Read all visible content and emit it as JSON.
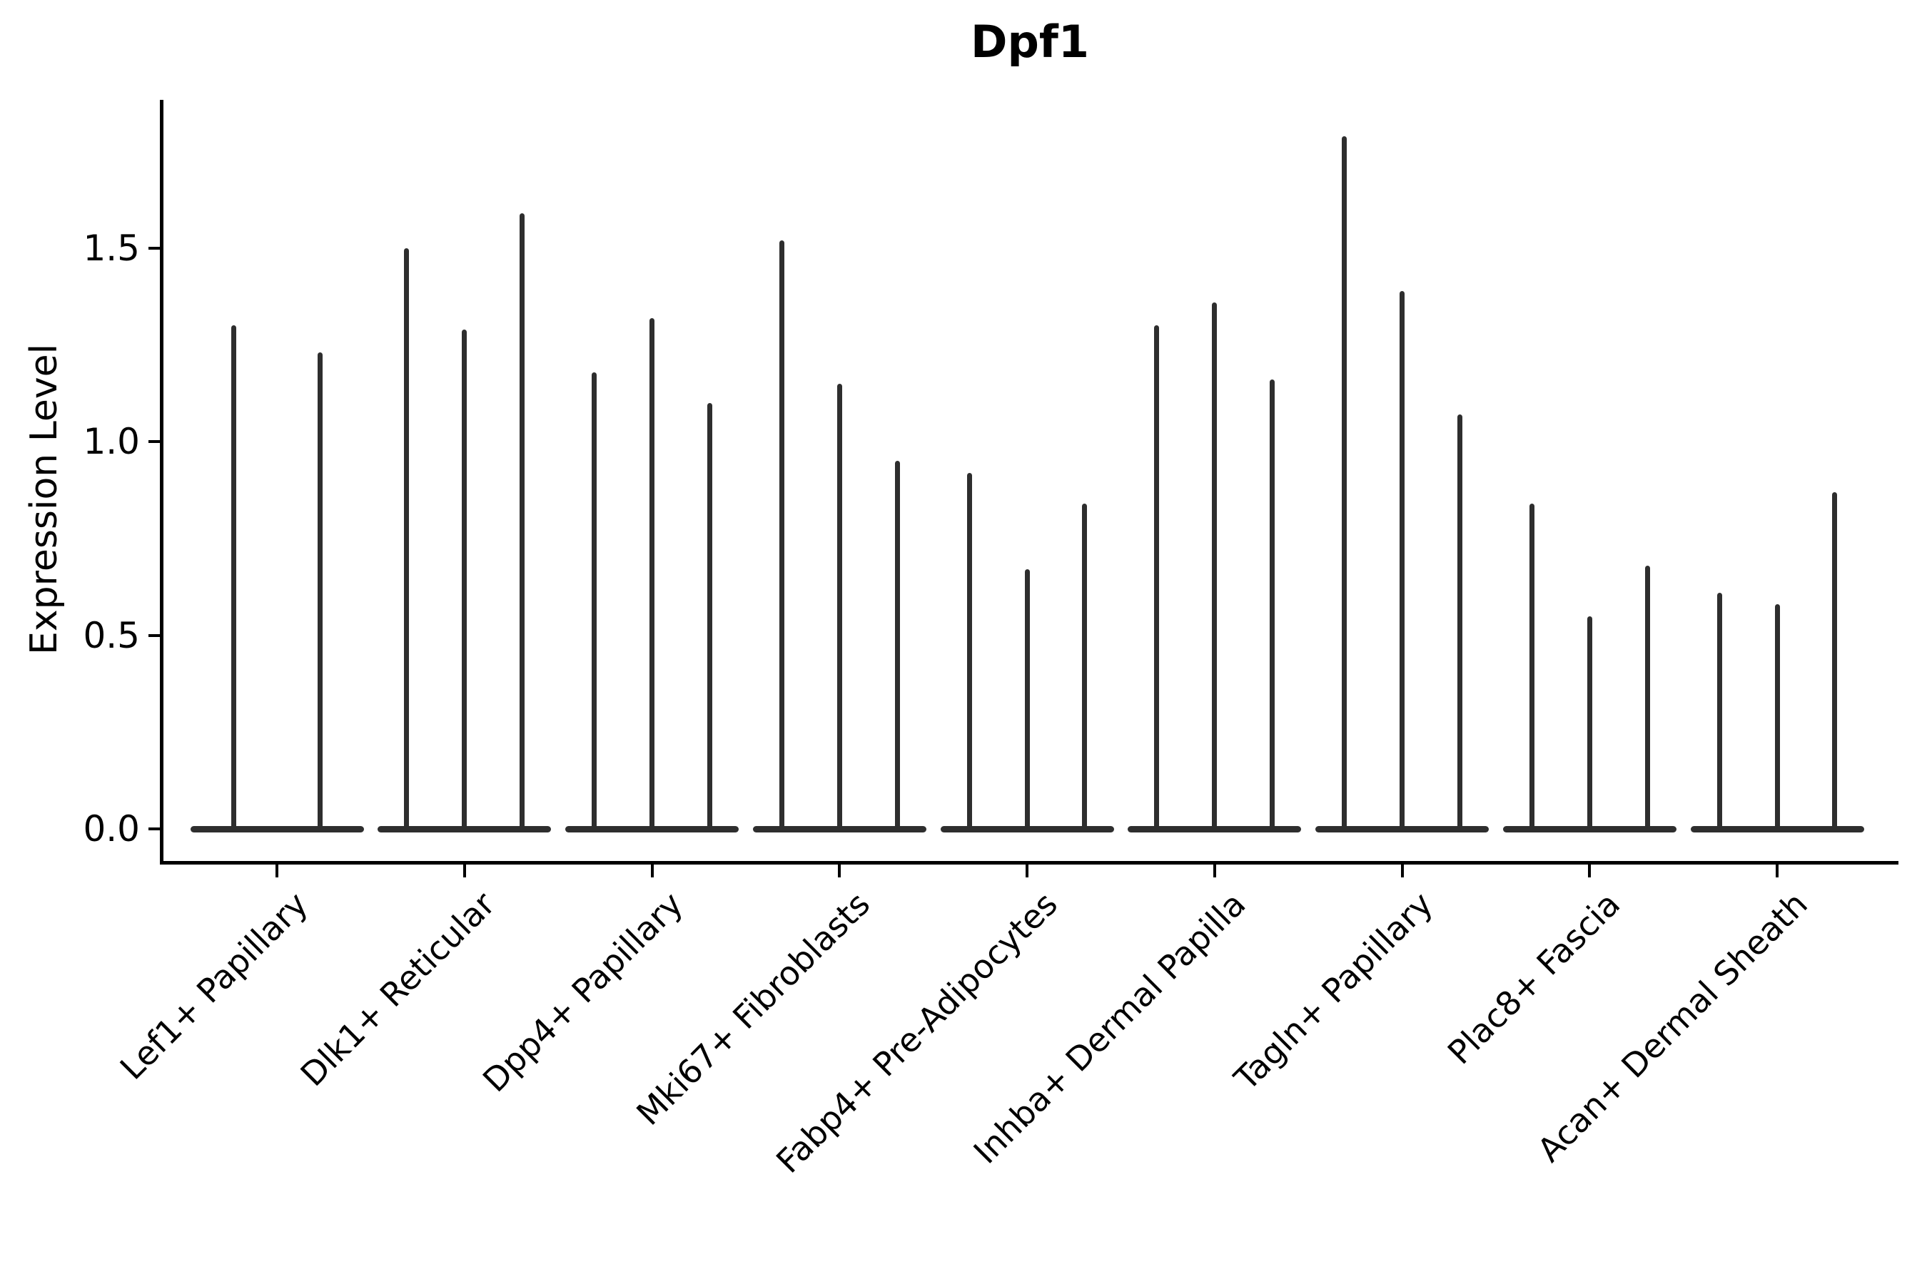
{
  "figure": {
    "title": "Dpf1"
  },
  "axes": {
    "ylabel": "Expression Level",
    "ytick_labels": [
      "0.0",
      "0.5",
      "1.0",
      "1.5"
    ]
  },
  "colors": {
    "ink": "#000000",
    "violin": "#2e2e2e",
    "background": "#ffffff"
  },
  "chart_data": {
    "type": "violin",
    "title": "Dpf1",
    "xlabel": "",
    "ylabel": "Expression Level",
    "ylim": [
      -0.09,
      1.89
    ],
    "yticks": [
      0.0,
      0.5,
      1.0,
      1.5
    ],
    "grid": false,
    "legend": false,
    "x_tick_rotation_deg": 45,
    "note": "Each category shows narrow violins: bulk of cells at expression 0 (flat base) with a thin spike up to the maximum expression value.",
    "categories": [
      "Lef1+ Papillary",
      "Dlk1+ Reticular",
      "Dpp4+ Papillary",
      "Mki67+ Fibroblasts",
      "Fabp4+ Pre-Adipocytes",
      "Inhba+ Dermal Papilla",
      "Tagln+ Papillary",
      "Plac8+ Fascia",
      "Acan+ Dermal Sheath"
    ],
    "groups": [
      {
        "category": "Lef1+ Papillary",
        "violins": [
          {
            "baseline": 0,
            "max": 1.3
          },
          {
            "baseline": 0,
            "max": 1.23
          }
        ]
      },
      {
        "category": "Dlk1+ Reticular",
        "violins": [
          {
            "baseline": 0,
            "max": 1.5
          },
          {
            "baseline": 0,
            "max": 1.29
          },
          {
            "baseline": 0,
            "max": 1.59
          }
        ]
      },
      {
        "category": "Dpp4+ Papillary",
        "violins": [
          {
            "baseline": 0,
            "max": 1.18
          },
          {
            "baseline": 0,
            "max": 1.32
          },
          {
            "baseline": 0,
            "max": 1.1
          }
        ]
      },
      {
        "category": "Mki67+ Fibroblasts",
        "violins": [
          {
            "baseline": 0,
            "max": 1.52
          },
          {
            "baseline": 0,
            "max": 1.15
          },
          {
            "baseline": 0,
            "max": 0.95
          }
        ]
      },
      {
        "category": "Fabp4+ Pre-Adipocytes",
        "violins": [
          {
            "baseline": 0,
            "max": 0.92
          },
          {
            "baseline": 0,
            "max": 0.67
          },
          {
            "baseline": 0,
            "max": 0.84
          }
        ]
      },
      {
        "category": "Inhba+ Dermal Papilla",
        "violins": [
          {
            "baseline": 0,
            "max": 1.3
          },
          {
            "baseline": 0,
            "max": 1.36
          },
          {
            "baseline": 0,
            "max": 1.16
          }
        ]
      },
      {
        "category": "Tagln+ Papillary",
        "violins": [
          {
            "baseline": 0,
            "max": 1.79
          },
          {
            "baseline": 0,
            "max": 1.39
          },
          {
            "baseline": 0,
            "max": 1.07
          }
        ]
      },
      {
        "category": "Plac8+ Fascia",
        "violins": [
          {
            "baseline": 0,
            "max": 0.84
          },
          {
            "baseline": 0,
            "max": 0.55
          },
          {
            "baseline": 0,
            "max": 0.68
          }
        ]
      },
      {
        "category": "Acan+ Dermal Sheath",
        "violins": [
          {
            "baseline": 0,
            "max": 0.61
          },
          {
            "baseline": 0,
            "max": 0.58
          },
          {
            "baseline": 0,
            "max": 0.87
          }
        ]
      }
    ]
  }
}
